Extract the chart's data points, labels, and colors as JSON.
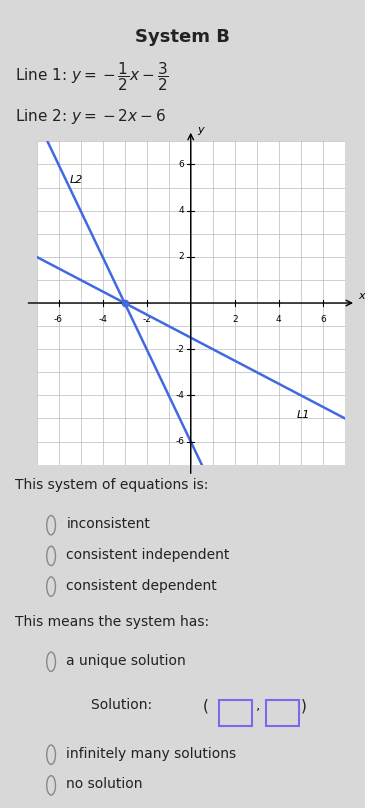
{
  "title": "System B",
  "line1_slope": -0.5,
  "line1_intercept": -1.5,
  "line2_slope": -2.0,
  "line2_intercept": -6.0,
  "line_color": "#4169E1",
  "intersection_x": -3.0,
  "intersection_y": 0.0,
  "xlim": [
    -7,
    7
  ],
  "ylim": [
    -7,
    7
  ],
  "bg_color": "#d8d8d8",
  "graph_bg": "#ffffff",
  "question1": "This system of equations is:",
  "options1": [
    "inconsistent",
    "consistent independent",
    "consistent dependent"
  ],
  "question2": "This means the system has:",
  "options2_a": "a unique solution",
  "options2_b": "infinitely many solutions",
  "options2_c": "no solution",
  "radio_color": "#888888",
  "box_color": "#7b68ee",
  "text_color": "#222222",
  "font_size_title": 13,
  "font_size_label": 11,
  "font_size_graph": 8,
  "font_size_body": 10
}
